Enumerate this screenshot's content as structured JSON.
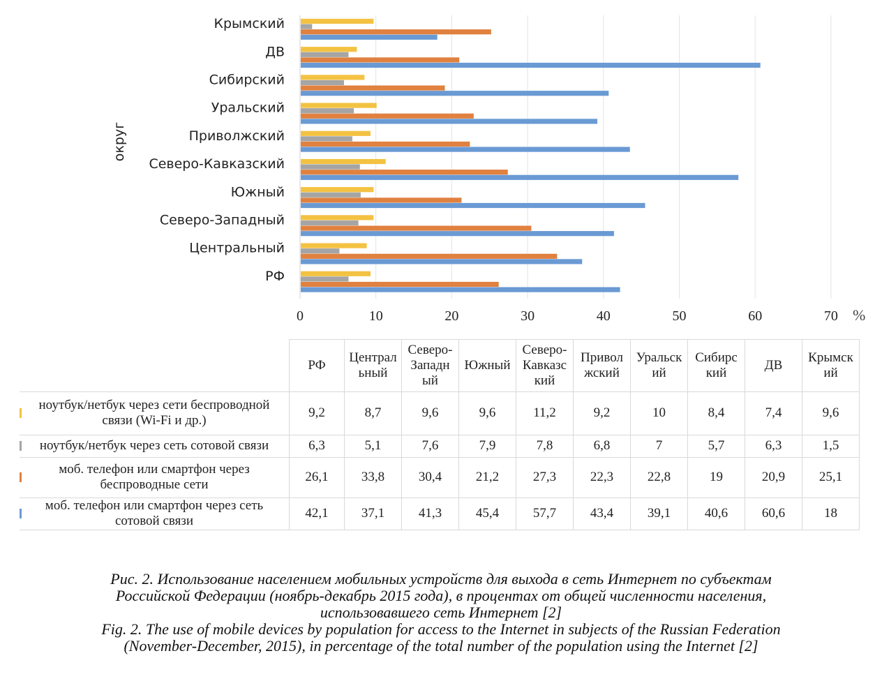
{
  "chart_data": {
    "type": "bar",
    "orientation": "horizontal",
    "title": "",
    "xlabel": "%",
    "ylabel": "округ",
    "xlim": [
      0,
      70
    ],
    "xticks": [
      "0",
      "10",
      "20",
      "30",
      "40",
      "50",
      "60",
      "70"
    ],
    "grid": true,
    "categories": [
      "РФ",
      "Центральный",
      "Северо-Западный",
      "Южный",
      "Северо-Кавказский",
      "Приволжский",
      "Уральский",
      "Сибирский",
      "ДВ",
      "Крымский"
    ],
    "series": [
      {
        "name": "ноутбук/нетбук через сети беспроводной связи (Wi-Fi и др.)",
        "color": "#F4C242",
        "values": [
          9.2,
          8.7,
          9.6,
          9.6,
          11.2,
          9.2,
          10,
          8.4,
          7.4,
          9.6
        ]
      },
      {
        "name": "ноутбук/нетбук через сеть сотовой связи",
        "color": "#A5A5A5",
        "values": [
          6.3,
          5.1,
          7.6,
          7.9,
          7.8,
          6.8,
          7,
          5.7,
          6.3,
          1.5
        ]
      },
      {
        "name": "моб. телефон или смартфон через беспроводные сети",
        "color": "#E0813F",
        "values": [
          26.1,
          33.8,
          30.4,
          21.2,
          27.3,
          22.3,
          22.8,
          19,
          20.9,
          25.1
        ]
      },
      {
        "name": "моб. телефон или смартфон через сеть сотовой связи",
        "color": "#6A9AD4",
        "values": [
          42.1,
          37.1,
          41.3,
          45.4,
          57.7,
          43.4,
          39.1,
          40.6,
          60.6,
          18
        ]
      }
    ]
  },
  "table": {
    "headers": [
      [
        "РФ"
      ],
      [
        "Централ",
        "ьный"
      ],
      [
        "Северо-",
        "Западн",
        "ый"
      ],
      [
        "Южный"
      ],
      [
        "Северо-",
        "Кавказс",
        "кий"
      ],
      [
        "Привол",
        "жский"
      ],
      [
        "Уральск",
        "ий"
      ],
      [
        "Сибирс",
        "кий"
      ],
      [
        "ДВ"
      ],
      [
        "Крымск",
        "ий"
      ]
    ],
    "rows": [
      {
        "label": [
          "ноутбук/нетбук через сети беспроводной",
          "связи (Wi-Fi и др.)"
        ],
        "color": "#F4C242",
        "values": [
          "9,2",
          "8,7",
          "9,6",
          "9,6",
          "11,2",
          "9,2",
          "10",
          "8,4",
          "7,4",
          "9,6"
        ]
      },
      {
        "label": [
          "ноутбук/нетбук через сеть сотовой связи"
        ],
        "color": "#A5A5A5",
        "values": [
          "6,3",
          "5,1",
          "7,6",
          "7,9",
          "7,8",
          "6,8",
          "7",
          "5,7",
          "6,3",
          "1,5"
        ]
      },
      {
        "label": [
          "моб. телефон или смартфон через",
          "беспроводные сети"
        ],
        "color": "#E0813F",
        "values": [
          "26,1",
          "33,8",
          "30,4",
          "21,2",
          "27,3",
          "22,3",
          "22,8",
          "19",
          "20,9",
          "25,1"
        ]
      },
      {
        "label": [
          "моб. телефон или смартфон через сеть",
          "сотовой связи"
        ],
        "color": "#6A9AD4",
        "values": [
          "42,1",
          "37,1",
          "41,3",
          "45,4",
          "57,7",
          "43,4",
          "39,1",
          "40,6",
          "60,6",
          "18"
        ]
      }
    ]
  },
  "caption": {
    "ru": [
      "Рис. 2. Использование населением мобильных устройств для выхода в сеть Интернет по субъектам",
      "Российской Федерации (ноябрь-декабрь 2015 года), в процентах от общей численности населения,",
      "использовавшего сеть Интернет [2]"
    ],
    "en": [
      "Fig. 2. The use of mobile devices by population for access to the Internet in subjects of the Russian Federation",
      "(November-December, 2015), in percentage of the total number of the population using the Internet [2]"
    ]
  }
}
